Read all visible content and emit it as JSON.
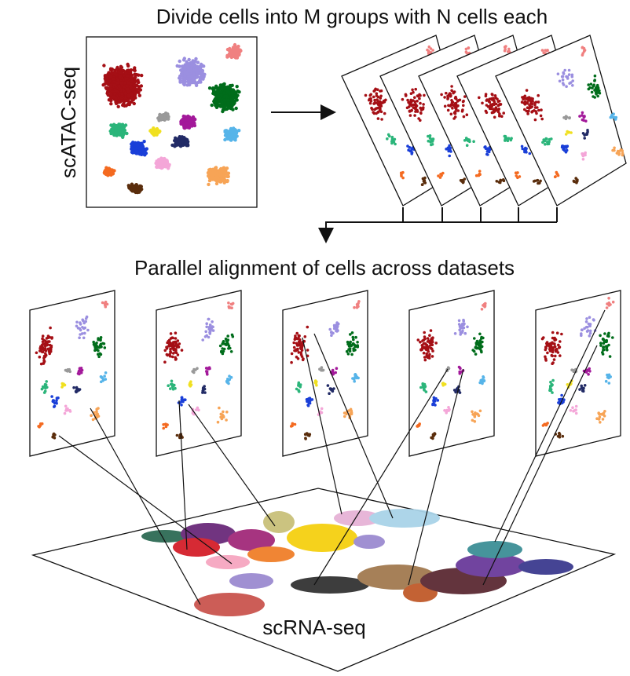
{
  "header": {
    "title": "Divide cells into M groups with N cells each"
  },
  "top_panel": {
    "label": "scATAC-seq"
  },
  "middle": {
    "title": "Parallel alignment of cells across datasets"
  },
  "bottom_panel": {
    "label": "scRNA-seq"
  }
}
